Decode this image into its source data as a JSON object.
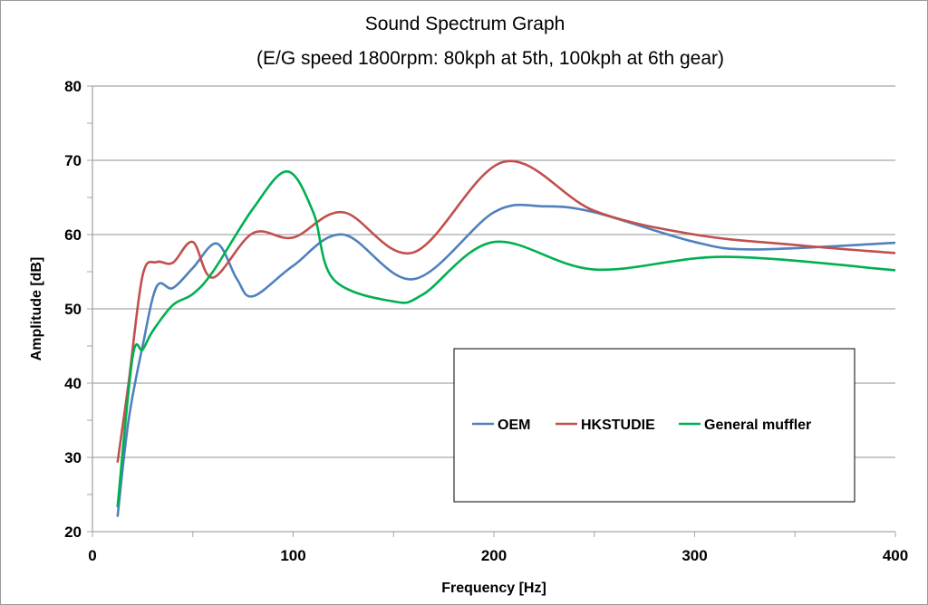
{
  "chart_data": {
    "type": "line",
    "title": "Sound Spectrum Graph",
    "subtitle": "(E/G speed 1800rpm: 80kph at 5th, 100kph at 6th gear)",
    "xlabel": "Frequency [Hz]",
    "ylabel": "Amplitude [dB]",
    "xlim": [
      0,
      400
    ],
    "ylim": [
      20,
      80
    ],
    "xticks": [
      "0",
      "100",
      "200",
      "300",
      "400"
    ],
    "yticks": [
      "20",
      "30",
      "40",
      "50",
      "60",
      "70",
      "80"
    ],
    "grid": "horizontal",
    "legend_position": "bottom-right inside",
    "series": [
      {
        "name": "OEM",
        "color": "#4f81bd",
        "points": [
          [
            12.5,
            22
          ],
          [
            18,
            35
          ],
          [
            25,
            45
          ],
          [
            32,
            53
          ],
          [
            40,
            52.8
          ],
          [
            50,
            55.5
          ],
          [
            62,
            58.8
          ],
          [
            72,
            54
          ],
          [
            80,
            51.7
          ],
          [
            100,
            55.8
          ],
          [
            125,
            60
          ],
          [
            160,
            54
          ],
          [
            200,
            63
          ],
          [
            225,
            63.8
          ],
          [
            250,
            63
          ],
          [
            300,
            59
          ],
          [
            330,
            58
          ],
          [
            400,
            58.9
          ]
        ]
      },
      {
        "name": "HKSTUDIE",
        "color": "#c0504d",
        "points": [
          [
            12.5,
            29.3
          ],
          [
            18,
            40
          ],
          [
            25,
            54.5
          ],
          [
            32,
            56.3
          ],
          [
            40,
            56.2
          ],
          [
            50,
            59
          ],
          [
            60,
            54.2
          ],
          [
            80,
            60.2
          ],
          [
            100,
            59.6
          ],
          [
            125,
            63
          ],
          [
            160,
            57.6
          ],
          [
            205,
            69.8
          ],
          [
            250,
            63.2
          ],
          [
            300,
            60
          ],
          [
            350,
            58.6
          ],
          [
            400,
            57.5
          ]
        ]
      },
      {
        "name": "General muffler",
        "color": "#00b050",
        "points": [
          [
            12.5,
            23.3
          ],
          [
            20,
            43.5
          ],
          [
            25,
            44.5
          ],
          [
            30,
            47
          ],
          [
            40,
            50.5
          ],
          [
            50,
            52
          ],
          [
            60,
            55
          ],
          [
            80,
            63.5
          ],
          [
            97,
            68.5
          ],
          [
            110,
            63
          ],
          [
            120,
            54
          ],
          [
            150,
            51
          ],
          [
            165,
            52
          ],
          [
            200,
            59
          ],
          [
            250,
            55.3
          ],
          [
            315,
            57
          ],
          [
            400,
            55.2
          ]
        ]
      }
    ]
  }
}
